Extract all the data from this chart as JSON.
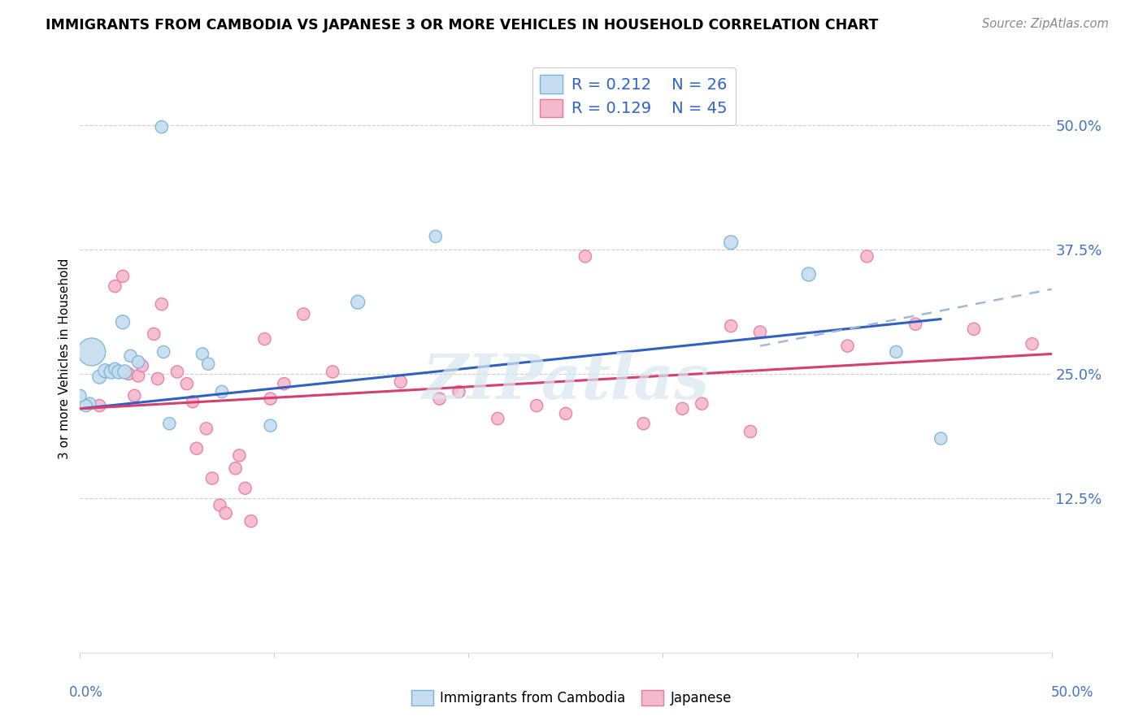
{
  "title": "IMMIGRANTS FROM CAMBODIA VS JAPANESE 3 OR MORE VEHICLES IN HOUSEHOLD CORRELATION CHART",
  "source": "Source: ZipAtlas.com",
  "ylabel": "3 or more Vehicles in Household",
  "ytick_labels": [
    "12.5%",
    "25.0%",
    "37.5%",
    "50.0%"
  ],
  "ytick_values": [
    0.125,
    0.25,
    0.375,
    0.5
  ],
  "xlim": [
    0.0,
    0.5
  ],
  "ylim": [
    -0.03,
    0.56
  ],
  "legend1_R": "0.212",
  "legend1_N": "26",
  "legend2_R": "0.129",
  "legend2_N": "45",
  "legend_label1": "Immigrants from Cambodia",
  "legend_label2": "Japanese",
  "blue_edge": "#7ab3d9",
  "blue_face": "#c5ddf0",
  "pink_edge": "#e87aa0",
  "pink_face": "#f5b8cc",
  "line_blue": "#3060c0",
  "line_pink": "#d44070",
  "line_dash": "#a0b8d8",
  "watermark": "ZIPatlas",
  "blue_points_x": [
    0.022,
    0.042,
    0.006,
    0.01,
    0.013,
    0.016,
    0.018,
    0.02,
    0.023,
    0.026,
    0.03,
    0.043,
    0.046,
    0.063,
    0.066,
    0.073,
    0.098,
    0.143,
    0.183,
    0.005,
    0.335,
    0.375,
    0.42,
    0.443,
    0.003,
    0.0
  ],
  "blue_points_y": [
    0.302,
    0.498,
    0.272,
    0.247,
    0.253,
    0.252,
    0.255,
    0.252,
    0.252,
    0.268,
    0.262,
    0.272,
    0.2,
    0.27,
    0.26,
    0.232,
    0.198,
    0.322,
    0.388,
    0.22,
    0.382,
    0.35,
    0.272,
    0.185,
    0.218,
    0.228
  ],
  "blue_sizes": [
    150,
    120,
    600,
    150,
    150,
    150,
    120,
    150,
    150,
    120,
    120,
    120,
    120,
    120,
    120,
    120,
    120,
    150,
    120,
    120,
    150,
    150,
    120,
    120,
    120,
    120
  ],
  "pink_points_x": [
    0.01,
    0.018,
    0.022,
    0.025,
    0.028,
    0.03,
    0.032,
    0.038,
    0.04,
    0.042,
    0.05,
    0.055,
    0.058,
    0.06,
    0.065,
    0.068,
    0.072,
    0.075,
    0.08,
    0.082,
    0.085,
    0.088,
    0.095,
    0.098,
    0.105,
    0.115,
    0.13,
    0.165,
    0.185,
    0.195,
    0.215,
    0.235,
    0.25,
    0.26,
    0.29,
    0.31,
    0.32,
    0.335,
    0.345,
    0.35,
    0.395,
    0.405,
    0.43,
    0.46,
    0.49
  ],
  "pink_points_y": [
    0.218,
    0.338,
    0.348,
    0.25,
    0.228,
    0.248,
    0.258,
    0.29,
    0.245,
    0.32,
    0.252,
    0.24,
    0.222,
    0.175,
    0.195,
    0.145,
    0.118,
    0.11,
    0.155,
    0.168,
    0.135,
    0.102,
    0.285,
    0.225,
    0.24,
    0.31,
    0.252,
    0.242,
    0.225,
    0.232,
    0.205,
    0.218,
    0.21,
    0.368,
    0.2,
    0.215,
    0.22,
    0.298,
    0.192,
    0.292,
    0.278,
    0.368,
    0.3,
    0.295,
    0.28
  ],
  "pink_sizes": [
    120,
    120,
    120,
    120,
    120,
    120,
    120,
    120,
    120,
    120,
    120,
    120,
    120,
    120,
    120,
    120,
    120,
    120,
    120,
    120,
    120,
    120,
    120,
    120,
    120,
    120,
    120,
    120,
    120,
    120,
    120,
    120,
    120,
    120,
    120,
    120,
    120,
    120,
    120,
    120,
    120,
    120,
    120,
    120,
    120
  ],
  "blue_line_x0": 0.0,
  "blue_line_x1": 0.443,
  "blue_line_y0": 0.215,
  "blue_line_y1": 0.305,
  "dash_line_x0": 0.35,
  "dash_line_x1": 0.5,
  "dash_line_y0": 0.278,
  "dash_line_y1": 0.335,
  "pink_line_x0": 0.0,
  "pink_line_x1": 0.5,
  "pink_line_y0": 0.215,
  "pink_line_y1": 0.27
}
